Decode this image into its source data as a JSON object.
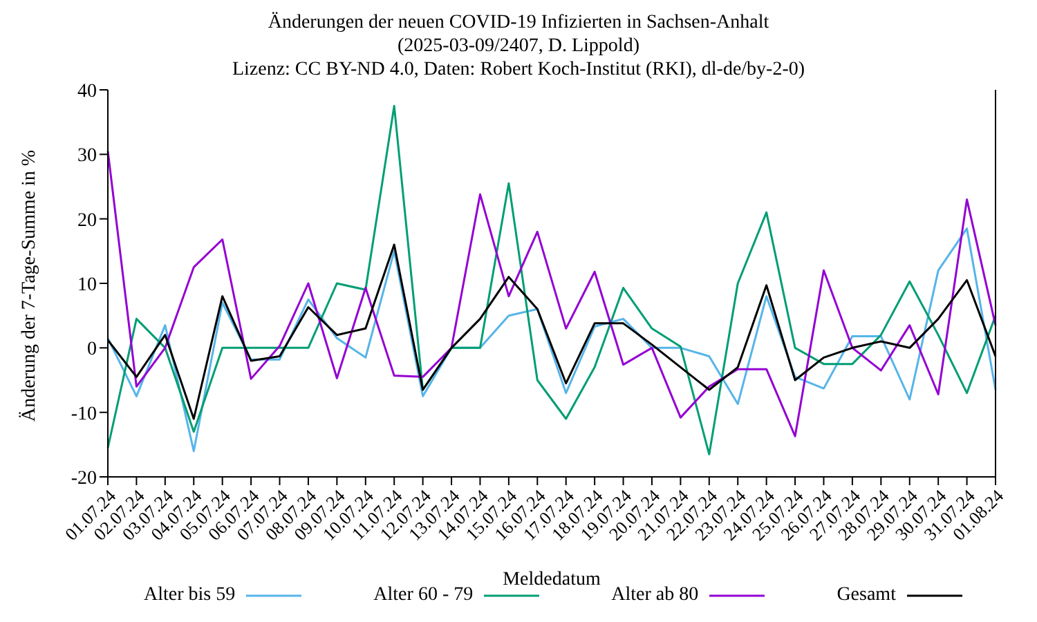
{
  "chart_data": {
    "type": "line",
    "title": "Änderungen der neuen COVID-19 Infizierten in Sachsen-Anhalt\n(2025-03-09/2407, D. Lippold)\nLizenz: CC BY-ND 4.0, Daten: Robert Koch-Institut (RKI), dl-de/by-2-0)",
    "xlabel": "Meldedatum",
    "ylabel": "Änderung der 7-Tage-Summe in %",
    "categories": [
      "01.07.24",
      "02.07.24",
      "03.07.24",
      "04.07.24",
      "05.07.24",
      "06.07.24",
      "07.07.24",
      "08.07.24",
      "09.07.24",
      "10.07.24",
      "11.07.24",
      "12.07.24",
      "13.07.24",
      "14.07.24",
      "15.07.24",
      "16.07.24",
      "17.07.24",
      "18.07.24",
      "19.07.24",
      "20.07.24",
      "21.07.24",
      "22.07.24",
      "23.07.24",
      "24.07.24",
      "25.07.24",
      "26.07.24",
      "27.07.24",
      "28.07.24",
      "29.07.24",
      "30.07.24",
      "31.07.24",
      "01.08.24"
    ],
    "series": [
      {
        "name": "Alter bis 59",
        "color": "#56b4e9",
        "values": [
          1.5,
          -7.5,
          3.5,
          -16,
          7,
          -1.8,
          -1.8,
          7.5,
          1.5,
          -1.5,
          15,
          -7.5,
          0,
          0,
          5,
          6,
          -7,
          3.3,
          4.5,
          0,
          0,
          -1.3,
          -8.7,
          8,
          -4.5,
          -6.3,
          1.8,
          1.8,
          -8,
          12,
          18.5,
          -6.5
        ]
      },
      {
        "name": "Alter 60 - 79",
        "color": "#009e73",
        "values": [
          -15.5,
          4.5,
          0,
          -13,
          0,
          0,
          0,
          0,
          10,
          9,
          37.5,
          -6.5,
          0,
          0,
          25.5,
          -5,
          -11,
          -3,
          9.3,
          3,
          0.2,
          -16.5,
          10,
          21,
          0,
          -2.5,
          -2.5,
          2,
          10.3,
          2,
          -7,
          5
        ]
      },
      {
        "name": "Alter ab 80",
        "color": "#9400d3",
        "values": [
          30.5,
          -6,
          0,
          12.5,
          16.8,
          -4.8,
          0.3,
          10,
          -4.7,
          9.3,
          -4.3,
          -4.5,
          0,
          23.8,
          8,
          18,
          3,
          11.8,
          -2.6,
          0,
          -10.8,
          -6,
          -3.3,
          -3.3,
          -13.7,
          12,
          0,
          -3.5,
          3.5,
          -7.2,
          23,
          3.5
        ]
      },
      {
        "name": "Gesamt",
        "color": "#000000",
        "values": [
          1.2,
          -4.5,
          2,
          -11,
          8,
          -2,
          -1.3,
          6.3,
          2,
          3,
          16,
          -6.5,
          0,
          4.5,
          11,
          6,
          -5.5,
          3.8,
          3.8,
          0.5,
          -3,
          -6.5,
          -3,
          9.7,
          -5,
          -1.5,
          0,
          1,
          0,
          4.5,
          10.5,
          -1.3
        ]
      }
    ],
    "ylim": [
      -20,
      40
    ],
    "yticks": [
      -20,
      -10,
      0,
      10,
      20,
      30,
      40
    ],
    "grid": false,
    "legend": "bottom",
    "marker": "none",
    "line_style": "solid"
  }
}
